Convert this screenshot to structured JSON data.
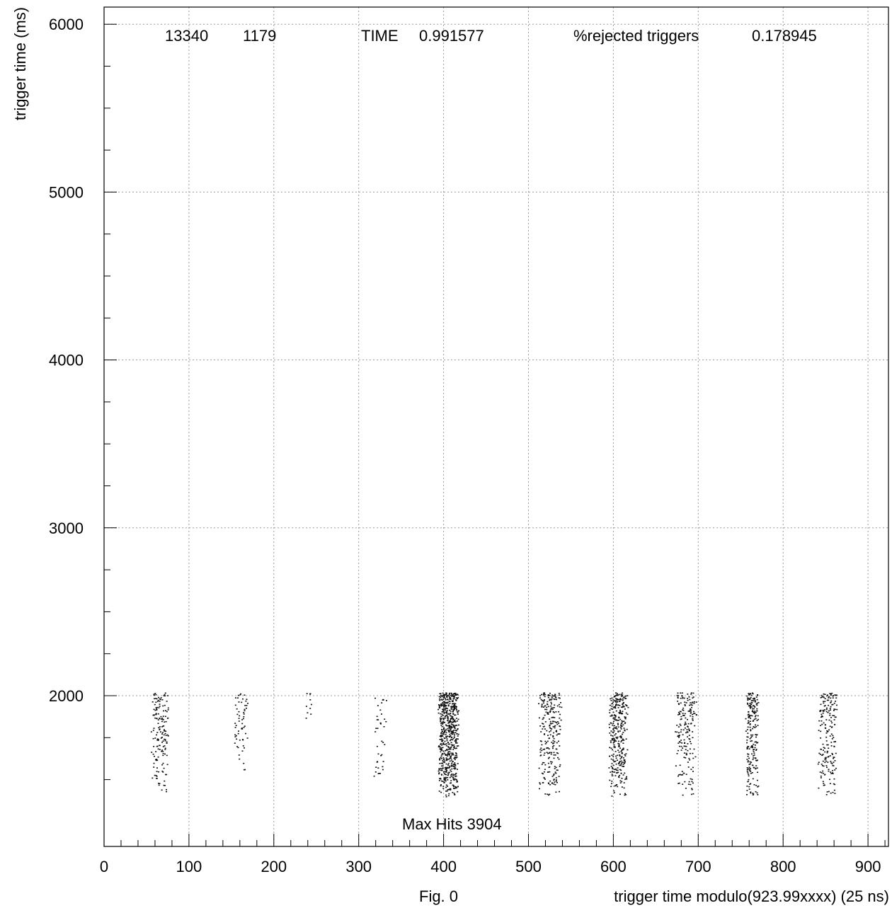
{
  "chart_data": {
    "type": "scatter",
    "xlabel": "trigger time modulo(923.99xxxx) (25 ns)",
    "ylabel": "trigger time (ms)",
    "figure_label": "Fig. 0",
    "xlim": [
      0,
      920
    ],
    "ylim": [
      1300,
      6100
    ],
    "xticks": [
      0,
      100,
      200,
      300,
      400,
      500,
      600,
      700,
      800,
      900
    ],
    "yticks": [
      2000,
      3000,
      4000,
      5000,
      6000
    ],
    "x_minor_step": 20,
    "y_minor_step": 250,
    "grid": true,
    "header": {
      "count_a": "13340",
      "count_b": "1179",
      "time_label": "TIME",
      "time_value": "0.991577",
      "rejected_label": "%rejected triggers",
      "rejected_value": "0.178945"
    },
    "annotation": "Max Hits 3904",
    "y_range_of_points": [
      1400,
      2020
    ],
    "clusters": [
      {
        "x_center": 65,
        "width": 22,
        "density": 160,
        "y_min": 1400
      },
      {
        "x_center": 160,
        "width": 18,
        "density": 60,
        "y_min": 1550
      },
      {
        "x_center": 240,
        "width": 10,
        "density": 10,
        "y_min": 1820
      },
      {
        "x_center": 325,
        "width": 18,
        "density": 40,
        "y_min": 1500
      },
      {
        "x_center": 405,
        "width": 26,
        "density": 650,
        "y_min": 1400
      },
      {
        "x_center": 525,
        "width": 30,
        "density": 260,
        "y_min": 1400
      },
      {
        "x_center": 605,
        "width": 24,
        "density": 330,
        "y_min": 1400
      },
      {
        "x_center": 685,
        "width": 26,
        "density": 190,
        "y_min": 1400
      },
      {
        "x_center": 763,
        "width": 16,
        "density": 220,
        "y_min": 1400
      },
      {
        "x_center": 852,
        "width": 24,
        "density": 200,
        "y_min": 1400
      }
    ]
  }
}
